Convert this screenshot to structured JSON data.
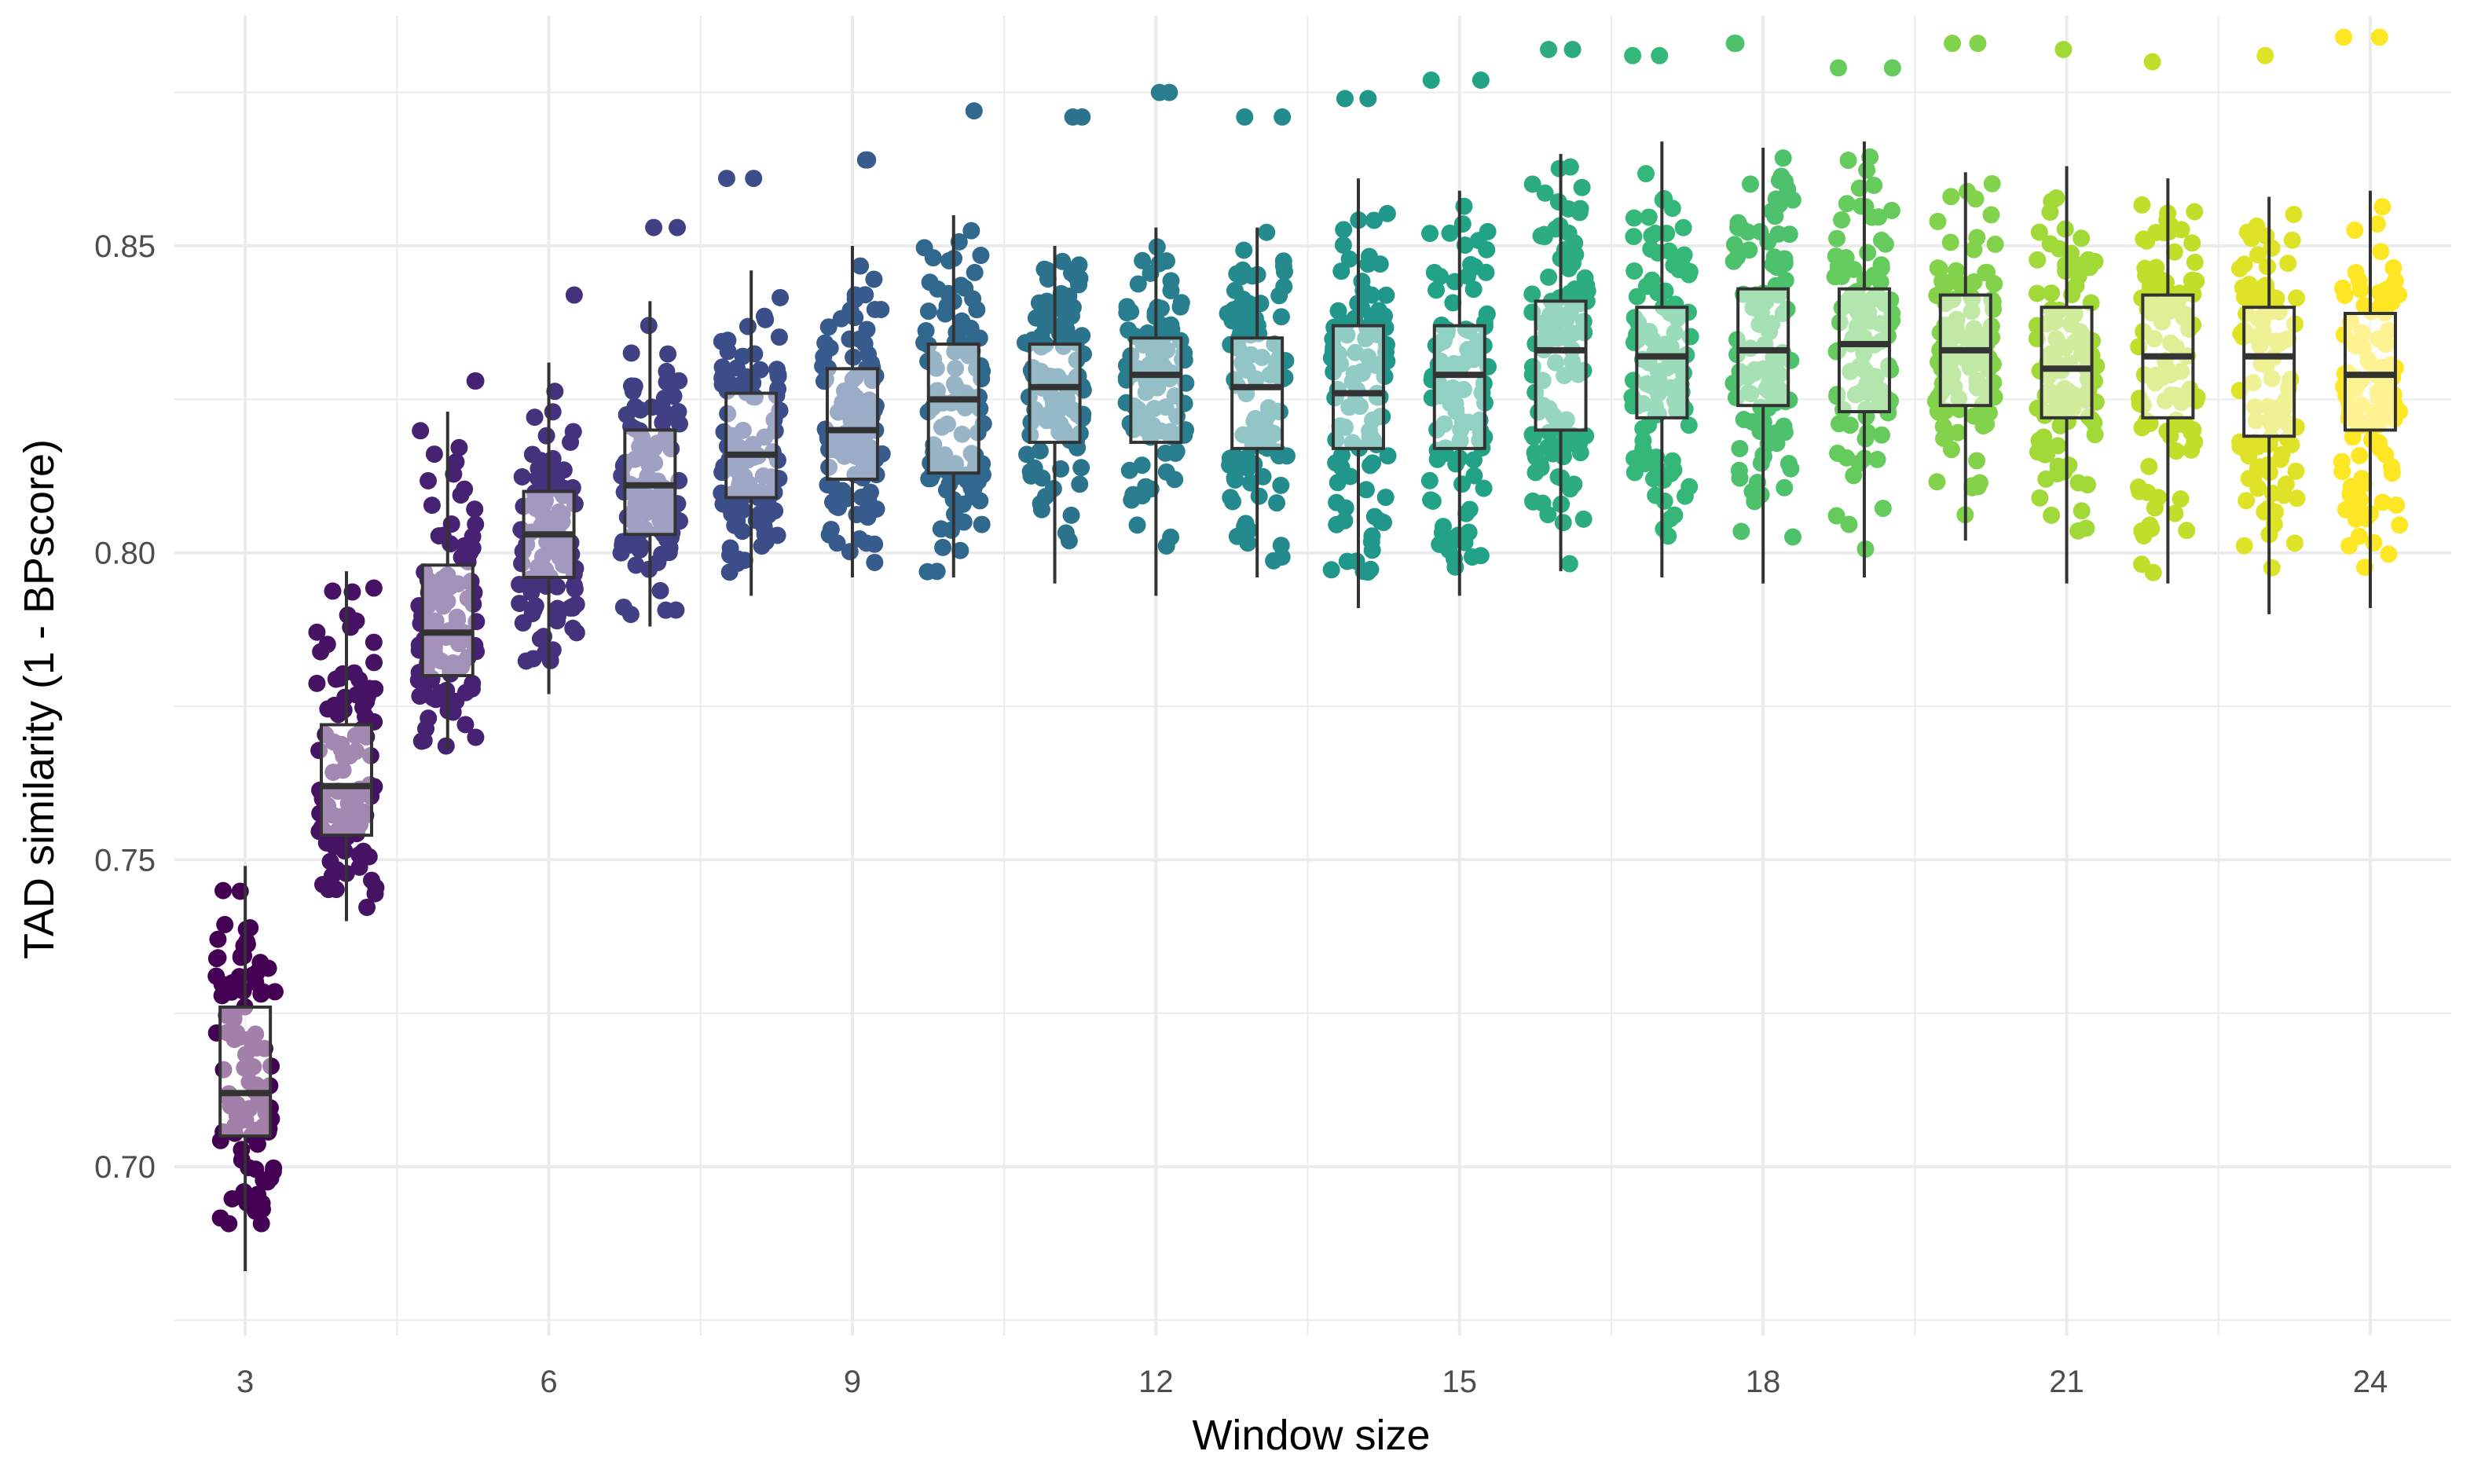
{
  "chart_data": {
    "type": "box",
    "xlabel": "Window size",
    "ylabel": "TAD similarity (1 - BPscore)",
    "x_ticks": [
      3,
      6,
      9,
      12,
      15,
      18,
      21,
      24
    ],
    "y_ticks": [
      "0.70",
      "0.75",
      "0.80",
      "0.85"
    ],
    "xlim": [
      2.3,
      24.8
    ],
    "ylim": [
      0.6725,
      0.8875
    ],
    "grid": true,
    "legend": "none",
    "color_scale": "viridis",
    "boxes": [
      {
        "x": 3,
        "q1": 0.705,
        "median": 0.712,
        "q3": 0.726,
        "wmin": 0.683,
        "wmax": 0.749,
        "outliers": []
      },
      {
        "x": 4,
        "q1": 0.754,
        "median": 0.762,
        "q3": 0.772,
        "wmin": 0.74,
        "wmax": 0.797,
        "outliers": []
      },
      {
        "x": 5,
        "q1": 0.78,
        "median": 0.787,
        "q3": 0.798,
        "wmin": 0.768,
        "wmax": 0.823,
        "outliers": [
          0.828,
          0.828
        ]
      },
      {
        "x": 6,
        "q1": 0.796,
        "median": 0.803,
        "q3": 0.81,
        "wmin": 0.777,
        "wmax": 0.831,
        "outliers": [
          0.842
        ]
      },
      {
        "x": 7,
        "q1": 0.803,
        "median": 0.811,
        "q3": 0.82,
        "wmin": 0.788,
        "wmax": 0.841,
        "outliers": [
          0.853,
          0.853
        ]
      },
      {
        "x": 8,
        "q1": 0.809,
        "median": 0.816,
        "q3": 0.826,
        "wmin": 0.793,
        "wmax": 0.846,
        "outliers": [
          0.861,
          0.861
        ]
      },
      {
        "x": 9,
        "q1": 0.812,
        "median": 0.82,
        "q3": 0.83,
        "wmin": 0.796,
        "wmax": 0.85,
        "outliers": [
          0.864,
          0.864
        ]
      },
      {
        "x": 10,
        "q1": 0.813,
        "median": 0.825,
        "q3": 0.834,
        "wmin": 0.796,
        "wmax": 0.855,
        "outliers": [
          0.872
        ]
      },
      {
        "x": 11,
        "q1": 0.818,
        "median": 0.827,
        "q3": 0.834,
        "wmin": 0.795,
        "wmax": 0.85,
        "outliers": [
          0.871,
          0.871
        ]
      },
      {
        "x": 12,
        "q1": 0.818,
        "median": 0.829,
        "q3": 0.835,
        "wmin": 0.793,
        "wmax": 0.853,
        "outliers": [
          0.875,
          0.875
        ]
      },
      {
        "x": 13,
        "q1": 0.817,
        "median": 0.827,
        "q3": 0.835,
        "wmin": 0.796,
        "wmax": 0.853,
        "outliers": [
          0.871,
          0.871
        ]
      },
      {
        "x": 14,
        "q1": 0.817,
        "median": 0.826,
        "q3": 0.837,
        "wmin": 0.791,
        "wmax": 0.861,
        "outliers": [
          0.874,
          0.874
        ]
      },
      {
        "x": 15,
        "q1": 0.817,
        "median": 0.829,
        "q3": 0.837,
        "wmin": 0.793,
        "wmax": 0.859,
        "outliers": [
          0.877,
          0.877
        ]
      },
      {
        "x": 16,
        "q1": 0.82,
        "median": 0.833,
        "q3": 0.841,
        "wmin": 0.797,
        "wmax": 0.865,
        "outliers": [
          0.882,
          0.882
        ]
      },
      {
        "x": 17,
        "q1": 0.822,
        "median": 0.832,
        "q3": 0.84,
        "wmin": 0.796,
        "wmax": 0.867,
        "outliers": [
          0.881,
          0.881
        ]
      },
      {
        "x": 18,
        "q1": 0.824,
        "median": 0.833,
        "q3": 0.843,
        "wmin": 0.795,
        "wmax": 0.866,
        "outliers": [
          0.883,
          0.883
        ]
      },
      {
        "x": 19,
        "q1": 0.823,
        "median": 0.834,
        "q3": 0.843,
        "wmin": 0.796,
        "wmax": 0.867,
        "outliers": [
          0.879,
          0.879
        ]
      },
      {
        "x": 20,
        "q1": 0.824,
        "median": 0.833,
        "q3": 0.842,
        "wmin": 0.802,
        "wmax": 0.862,
        "outliers": [
          0.883,
          0.883
        ]
      },
      {
        "x": 21,
        "q1": 0.822,
        "median": 0.83,
        "q3": 0.84,
        "wmin": 0.795,
        "wmax": 0.863,
        "outliers": [
          0.882
        ]
      },
      {
        "x": 22,
        "q1": 0.822,
        "median": 0.832,
        "q3": 0.842,
        "wmin": 0.795,
        "wmax": 0.861,
        "outliers": [
          0.88
        ]
      },
      {
        "x": 23,
        "q1": 0.819,
        "median": 0.832,
        "q3": 0.84,
        "wmin": 0.79,
        "wmax": 0.858,
        "outliers": [
          0.881
        ]
      },
      {
        "x": 24,
        "q1": 0.82,
        "median": 0.829,
        "q3": 0.839,
        "wmin": 0.791,
        "wmax": 0.859,
        "outliers": [
          0.884,
          0.884
        ]
      }
    ]
  }
}
